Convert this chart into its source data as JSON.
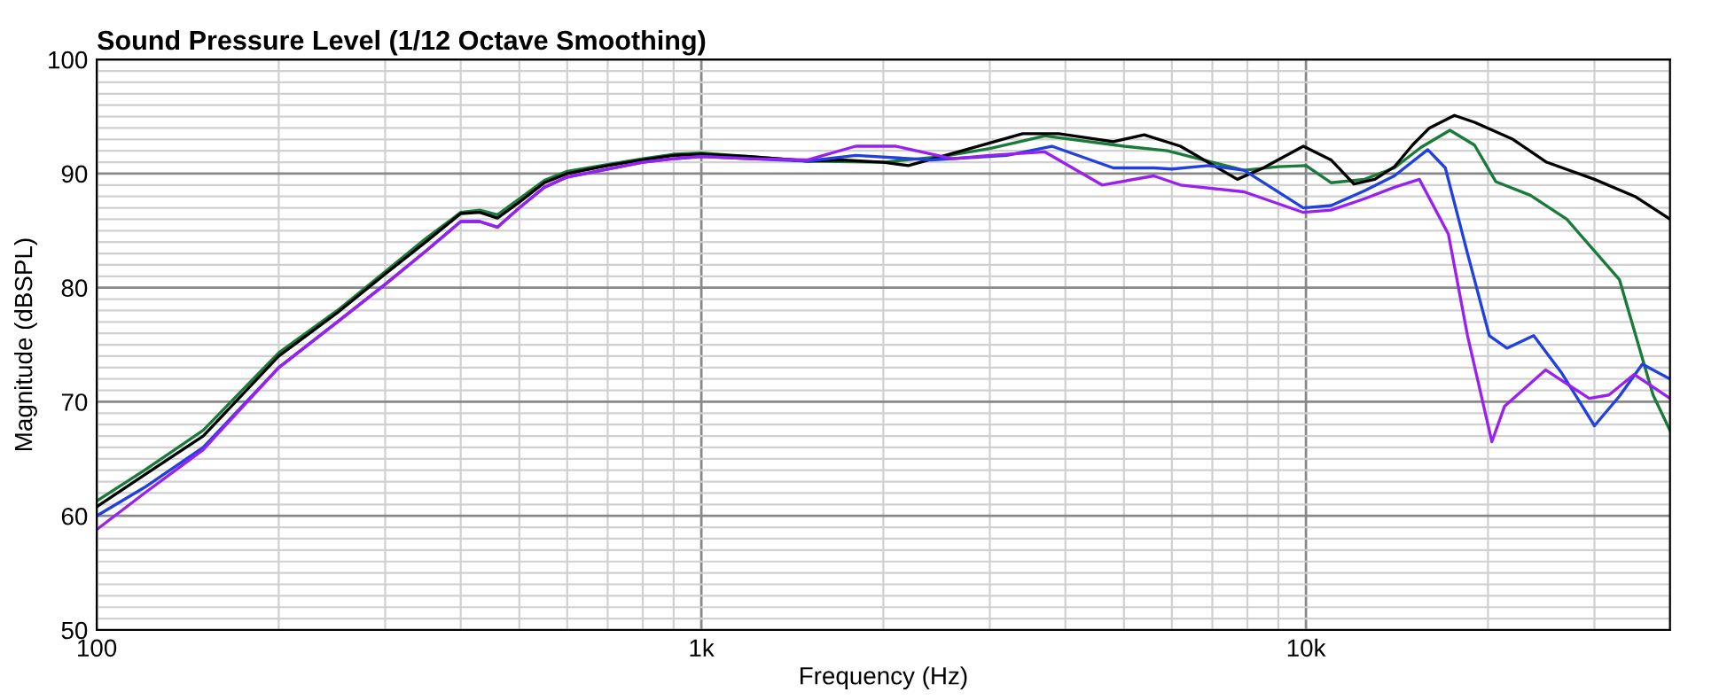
{
  "chart_data": {
    "type": "line",
    "title": "Sound Pressure Level (1/12 Octave Smoothing)",
    "xlabel": "Frequency (Hz)",
    "ylabel": "Magnitude (dBSPL)",
    "log": "x",
    "grid": true,
    "legend": false,
    "marker": "none",
    "line_style": "solid",
    "xlim": [
      100,
      40000
    ],
    "ylim": [
      50,
      100
    ],
    "xticks": [
      {
        "value": 100,
        "label": "100"
      },
      {
        "value": 1000,
        "label": "1k"
      },
      {
        "value": 10000,
        "label": "10k"
      }
    ],
    "yticks": [
      50,
      60,
      70,
      80,
      90,
      100
    ],
    "series": [
      {
        "color": "#1a7a3a",
        "x": [
          100,
          120,
          150,
          200,
          250,
          300,
          350,
          400,
          430,
          460,
          500,
          550,
          600,
          700,
          800,
          900,
          1000,
          1200,
          1500,
          2000,
          2500,
          3000,
          3700,
          5000,
          5900,
          7000,
          7900,
          9000,
          10000,
          11000,
          12500,
          14000,
          15500,
          17300,
          19000,
          20600,
          23500,
          27000,
          33000,
          37500,
          40000
        ],
        "values": [
          61.3,
          64,
          67.5,
          74.3,
          78,
          81.4,
          84.3,
          86.6,
          86.8,
          86.4,
          87.8,
          89.4,
          90.2,
          90.8,
          91.3,
          91.7,
          91.8,
          91.5,
          91.1,
          91.0,
          91.5,
          92.2,
          93.3,
          92.4,
          92.0,
          91.0,
          90.3,
          90.6,
          90.7,
          89.2,
          89.5,
          90.5,
          92.3,
          93.8,
          92.5,
          89.3,
          88.1,
          86,
          80.7,
          70.6,
          67.5
        ]
      },
      {
        "color": "#000000",
        "x": [
          100,
          120,
          150,
          200,
          250,
          300,
          350,
          400,
          430,
          460,
          500,
          550,
          600,
          700,
          800,
          900,
          1000,
          1200,
          1500,
          1700,
          2000,
          2200,
          2700,
          3400,
          3900,
          4800,
          5400,
          6200,
          7700,
          8500,
          9900,
          11000,
          12000,
          13000,
          14000,
          15000,
          16000,
          17600,
          19000,
          22000,
          25000,
          30000,
          35000,
          40000
        ],
        "values": [
          60.8,
          63.6,
          67,
          74,
          77.8,
          81.2,
          84,
          86.5,
          86.6,
          86.1,
          87.5,
          89.2,
          90,
          90.7,
          91.2,
          91.6,
          91.7,
          91.5,
          91.1,
          91.2,
          91.0,
          90.7,
          92.0,
          93.5,
          93.5,
          92.8,
          93.4,
          92.4,
          89.5,
          90.5,
          92.4,
          91.2,
          89.1,
          89.5,
          90.6,
          92.5,
          94.0,
          95.1,
          94.5,
          93,
          91,
          89.5,
          88,
          86
        ]
      },
      {
        "color": "#2040e0",
        "x": [
          100,
          120,
          150,
          200,
          250,
          300,
          350,
          400,
          430,
          460,
          500,
          550,
          600,
          700,
          800,
          900,
          1000,
          1200,
          1500,
          1800,
          2400,
          3200,
          3800,
          4800,
          5600,
          6000,
          6900,
          7900,
          9900,
          11000,
          12500,
          14000,
          15900,
          17000,
          18500,
          20100,
          21500,
          23800,
          26500,
          30000,
          33000,
          36000,
          40000
        ],
        "values": [
          60,
          62.5,
          66,
          73,
          77,
          80.3,
          83.2,
          85.8,
          85.8,
          85.3,
          87,
          88.8,
          89.7,
          90.4,
          91,
          91.3,
          91.5,
          91.3,
          91.1,
          91.6,
          91.2,
          91.6,
          92.4,
          90.5,
          90.5,
          90.4,
          90.7,
          90.3,
          87.0,
          87.2,
          88.5,
          89.8,
          92.1,
          90.5,
          83,
          75.8,
          74.7,
          75.8,
          72.5,
          67.9,
          70.5,
          73.3,
          72.0
        ]
      },
      {
        "color": "#9a20f0",
        "x": [
          100,
          120,
          150,
          200,
          250,
          300,
          350,
          400,
          430,
          460,
          500,
          550,
          600,
          700,
          800,
          900,
          1000,
          1200,
          1500,
          1800,
          2100,
          2600,
          3000,
          3700,
          4600,
          5600,
          6200,
          7900,
          9900,
          11000,
          12500,
          14000,
          15400,
          17200,
          18500,
          20300,
          21300,
          24900,
          29400,
          31700,
          34900,
          40000
        ],
        "values": [
          58.8,
          62,
          65.8,
          73,
          77,
          80.3,
          83.2,
          85.8,
          85.8,
          85.3,
          87,
          88.8,
          89.7,
          90.4,
          91,
          91.3,
          91.5,
          91.3,
          91.2,
          92.4,
          92.4,
          91.3,
          91.6,
          91.9,
          89.0,
          89.8,
          89.0,
          88.4,
          86.6,
          86.8,
          87.8,
          88.8,
          89.5,
          84.7,
          75.8,
          66.5,
          69.6,
          72.8,
          70.3,
          70.6,
          72.4,
          70.3
        ]
      }
    ]
  }
}
